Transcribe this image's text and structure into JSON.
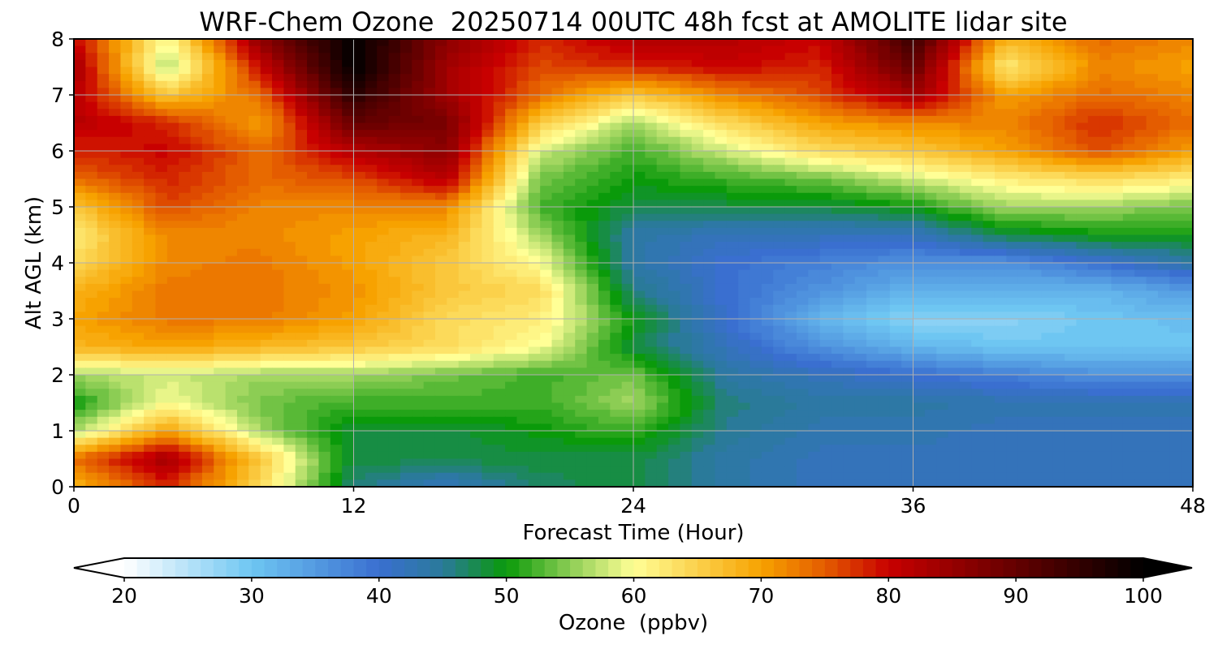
{
  "chart_data": {
    "type": "heatmap",
    "title": "WRF-Chem Ozone  20250714 00UTC 48h fcst at AMOLITE lidar site",
    "xlabel": "Forecast Time (Hour)",
    "ylabel": "Alt AGL (km)",
    "xlim": [
      0,
      48
    ],
    "ylim": [
      0,
      8
    ],
    "xticks": [
      "0",
      "12",
      "24",
      "36",
      "48"
    ],
    "yticks": [
      "0",
      "1",
      "2",
      "3",
      "4",
      "5",
      "6",
      "7",
      "8"
    ],
    "grid": true,
    "z_hours": [
      0,
      4,
      8,
      12,
      16,
      20,
      24,
      28,
      32,
      36,
      40,
      44,
      48
    ],
    "z_alts": [
      0,
      0.5,
      1,
      1.5,
      2,
      2.5,
      3,
      3.5,
      4,
      4.5,
      5,
      5.5,
      6,
      6.5,
      7,
      7.5,
      8
    ],
    "z_values_ppbv": [
      [
        68,
        78,
        64,
        46,
        42,
        47,
        48,
        44,
        42,
        42,
        42,
        42,
        42
      ],
      [
        74,
        84,
        66,
        48,
        48,
        48,
        48,
        44,
        42,
        42,
        42,
        42,
        42
      ],
      [
        56,
        70,
        56,
        48,
        48,
        50,
        52,
        45,
        43,
        43,
        42,
        42,
        42
      ],
      [
        50,
        60,
        54,
        52,
        52,
        52,
        56,
        46,
        44,
        44,
        43,
        43,
        43
      ],
      [
        56,
        58,
        56,
        56,
        54,
        52,
        54,
        44,
        42,
        40,
        38,
        36,
        36
      ],
      [
        68,
        70,
        68,
        66,
        64,
        60,
        48,
        42,
        36,
        32,
        30,
        30,
        30
      ],
      [
        70,
        73,
        73,
        70,
        64,
        62,
        50,
        40,
        32,
        28,
        28,
        30,
        31
      ],
      [
        68,
        73,
        73,
        71,
        66,
        64,
        46,
        40,
        36,
        32,
        32,
        32,
        35
      ],
      [
        64,
        72,
        73,
        70,
        66,
        60,
        44,
        40,
        38,
        36,
        36,
        40,
        44
      ],
      [
        62,
        72,
        72,
        70,
        68,
        56,
        44,
        42,
        42,
        42,
        48,
        50,
        50
      ],
      [
        66,
        76,
        72,
        72,
        72,
        52,
        48,
        48,
        48,
        50,
        56,
        56,
        54
      ],
      [
        74,
        78,
        74,
        76,
        82,
        54,
        50,
        52,
        54,
        58,
        62,
        64,
        62
      ],
      [
        78,
        80,
        74,
        82,
        86,
        58,
        52,
        58,
        64,
        66,
        70,
        76,
        70
      ],
      [
        82,
        78,
        70,
        90,
        88,
        66,
        56,
        64,
        70,
        72,
        72,
        78,
        74
      ],
      [
        82,
        66,
        74,
        96,
        84,
        74,
        66,
        72,
        76,
        84,
        70,
        74,
        72
      ],
      [
        84,
        56,
        80,
        100,
        84,
        76,
        78,
        80,
        78,
        90,
        62,
        72,
        70
      ],
      [
        80,
        60,
        86,
        100,
        86,
        78,
        82,
        82,
        80,
        94,
        68,
        74,
        72
      ]
    ],
    "colorbar": {
      "label": "Ozone  (ppbv)",
      "min": 20,
      "max": 100,
      "ticks": [
        "20",
        "30",
        "40",
        "50",
        "60",
        "70",
        "80",
        "90",
        "100"
      ],
      "extend": "both",
      "stops": [
        {
          "v": 20,
          "c": "#ffffff"
        },
        {
          "v": 30,
          "c": "#6ec6f2"
        },
        {
          "v": 40,
          "c": "#3a6fd0"
        },
        {
          "v": 45,
          "c": "#2a7a9a"
        },
        {
          "v": 50,
          "c": "#0a9a0a"
        },
        {
          "v": 55,
          "c": "#8ccd54"
        },
        {
          "v": 60,
          "c": "#ffff96"
        },
        {
          "v": 70,
          "c": "#f7a200"
        },
        {
          "v": 75,
          "c": "#e45c00"
        },
        {
          "v": 80,
          "c": "#c80000"
        },
        {
          "v": 90,
          "c": "#640000"
        },
        {
          "v": 100,
          "c": "#000000"
        }
      ]
    }
  }
}
